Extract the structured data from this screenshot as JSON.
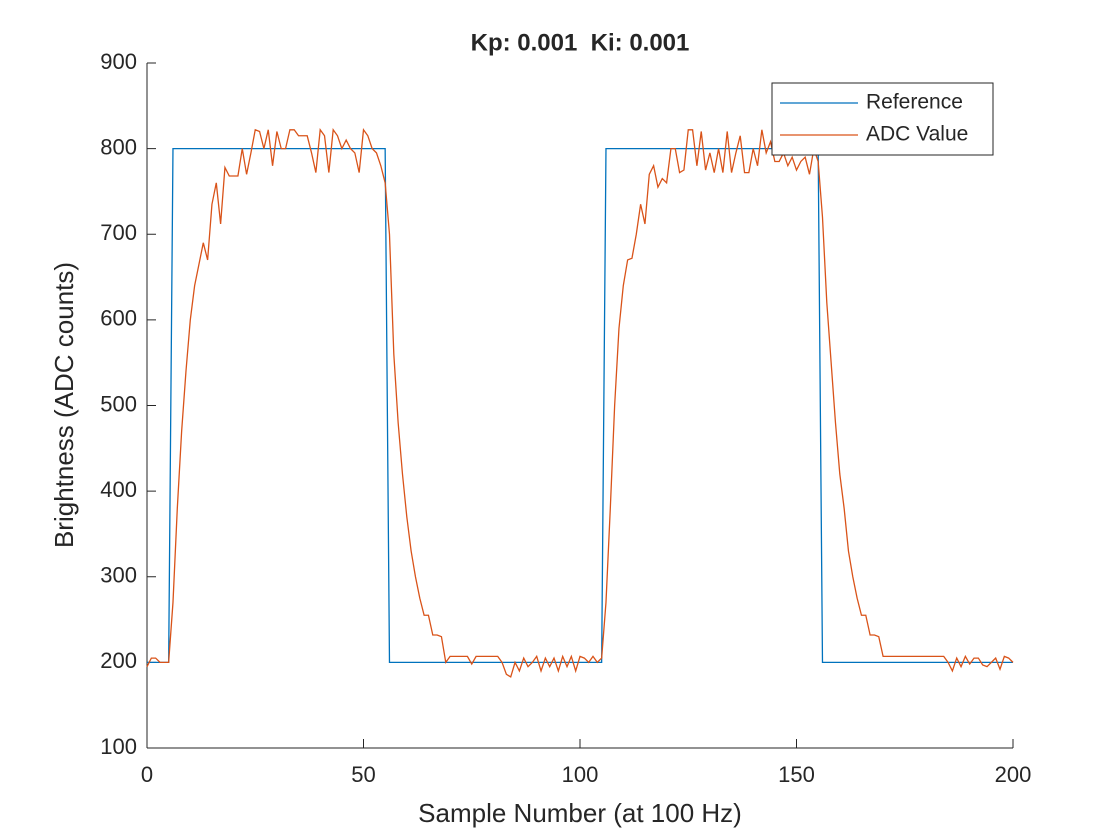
{
  "chart_data": {
    "type": "line",
    "title": "Kp: 0.001  Ki: 0.001",
    "x_label": "Sample Number (at 100 Hz)",
    "y_label": "Brightness (ADC counts)",
    "x": [
      0,
      1,
      2,
      3,
      4,
      5,
      6,
      7,
      8,
      9,
      10,
      11,
      12,
      13,
      14,
      15,
      16,
      17,
      18,
      19,
      20,
      21,
      22,
      23,
      24,
      25,
      26,
      27,
      28,
      29,
      30,
      31,
      32,
      33,
      34,
      35,
      36,
      37,
      38,
      39,
      40,
      41,
      42,
      43,
      44,
      45,
      46,
      47,
      48,
      49,
      50,
      51,
      52,
      53,
      54,
      55,
      56,
      57,
      58,
      59,
      60,
      61,
      62,
      63,
      64,
      65,
      66,
      67,
      68,
      69,
      70,
      71,
      72,
      73,
      74,
      75,
      76,
      77,
      78,
      79,
      80,
      81,
      82,
      83,
      84,
      85,
      86,
      87,
      88,
      89,
      90,
      91,
      92,
      93,
      94,
      95,
      96,
      97,
      98,
      99,
      100,
      101,
      102,
      103,
      104,
      105,
      106,
      107,
      108,
      109,
      110,
      111,
      112,
      113,
      114,
      115,
      116,
      117,
      118,
      119,
      120,
      121,
      122,
      123,
      124,
      125,
      126,
      127,
      128,
      129,
      130,
      131,
      132,
      133,
      134,
      135,
      136,
      137,
      138,
      139,
      140,
      141,
      142,
      143,
      144,
      145,
      146,
      147,
      148,
      149,
      150,
      151,
      152,
      153,
      154,
      155,
      156,
      157,
      158,
      159,
      160,
      161,
      162,
      163,
      164,
      165,
      166,
      167,
      168,
      169,
      170,
      171,
      172,
      173,
      174,
      175,
      176,
      177,
      178,
      179,
      180,
      181,
      182,
      183,
      184,
      185,
      186,
      187,
      188,
      189,
      190,
      191,
      192,
      193,
      194,
      195,
      196,
      197,
      198,
      199,
      200
    ],
    "series": [
      {
        "name": "Reference",
        "color": "#0072BD",
        "values": [
          200,
          200,
          200,
          200,
          200,
          200,
          800,
          800,
          800,
          800,
          800,
          800,
          800,
          800,
          800,
          800,
          800,
          800,
          800,
          800,
          800,
          800,
          800,
          800,
          800,
          800,
          800,
          800,
          800,
          800,
          800,
          800,
          800,
          800,
          800,
          800,
          800,
          800,
          800,
          800,
          800,
          800,
          800,
          800,
          800,
          800,
          800,
          800,
          800,
          800,
          800,
          800,
          800,
          800,
          800,
          800,
          200,
          200,
          200,
          200,
          200,
          200,
          200,
          200,
          200,
          200,
          200,
          200,
          200,
          200,
          200,
          200,
          200,
          200,
          200,
          200,
          200,
          200,
          200,
          200,
          200,
          200,
          200,
          200,
          200,
          200,
          200,
          200,
          200,
          200,
          200,
          200,
          200,
          200,
          200,
          200,
          200,
          200,
          200,
          200,
          200,
          200,
          200,
          200,
          200,
          200,
          800,
          800,
          800,
          800,
          800,
          800,
          800,
          800,
          800,
          800,
          800,
          800,
          800,
          800,
          800,
          800,
          800,
          800,
          800,
          800,
          800,
          800,
          800,
          800,
          800,
          800,
          800,
          800,
          800,
          800,
          800,
          800,
          800,
          800,
          800,
          800,
          800,
          800,
          800,
          800,
          800,
          800,
          800,
          800,
          800,
          800,
          800,
          800,
          800,
          800,
          200,
          200,
          200,
          200,
          200,
          200,
          200,
          200,
          200,
          200,
          200,
          200,
          200,
          200,
          200,
          200,
          200,
          200,
          200,
          200,
          200,
          200,
          200,
          200,
          200,
          200,
          200,
          200,
          200,
          200,
          200,
          200,
          200,
          200,
          200,
          200,
          200,
          200,
          200,
          200,
          200,
          200,
          200,
          200,
          200
        ]
      },
      {
        "name": "ADC Value",
        "color": "#D95319",
        "values": [
          195,
          205,
          205,
          200,
          200,
          200,
          270,
          380,
          470,
          540,
          600,
          640,
          665,
          690,
          670,
          735,
          760,
          712,
          778,
          768,
          768,
          768,
          800,
          770,
          795,
          822,
          820,
          800,
          822,
          780,
          820,
          800,
          800,
          822,
          822,
          815,
          815,
          815,
          795,
          772,
          822,
          815,
          772,
          822,
          815,
          800,
          810,
          800,
          795,
          772,
          822,
          815,
          800,
          795,
          780,
          760,
          700,
          560,
          480,
          420,
          370,
          330,
          300,
          275,
          255,
          255,
          232,
          232,
          230,
          200,
          207,
          207,
          207,
          207,
          207,
          198,
          207,
          207,
          207,
          207,
          207,
          207,
          200,
          186,
          183,
          200,
          190,
          205,
          195,
          200,
          207,
          190,
          205,
          195,
          205,
          190,
          207,
          195,
          207,
          190,
          207,
          205,
          200,
          207,
          200,
          205,
          270,
          380,
          500,
          590,
          640,
          670,
          672,
          700,
          735,
          712,
          770,
          780,
          755,
          765,
          760,
          800,
          800,
          772,
          775,
          822,
          822,
          780,
          820,
          775,
          795,
          772,
          800,
          772,
          820,
          772,
          795,
          815,
          772,
          772,
          800,
          780,
          822,
          795,
          808,
          785,
          785,
          795,
          780,
          790,
          775,
          785,
          790,
          770,
          800,
          785,
          720,
          620,
          550,
          480,
          420,
          380,
          330,
          300,
          275,
          255,
          255,
          232,
          232,
          230,
          207,
          207,
          207,
          207,
          207,
          207,
          207,
          207,
          207,
          207,
          207,
          207,
          207,
          207,
          207,
          200,
          190,
          205,
          195,
          207,
          198,
          205,
          205,
          197,
          195,
          200,
          205,
          192,
          207,
          205,
          200
        ]
      }
    ],
    "xlim": [
      0,
      200
    ],
    "xticks": [
      0,
      50,
      100,
      150,
      200
    ],
    "ylim": [
      100,
      900
    ],
    "yticks": [
      100,
      200,
      300,
      400,
      500,
      600,
      700,
      800,
      900
    ],
    "grid": false,
    "legend": "top-right"
  }
}
